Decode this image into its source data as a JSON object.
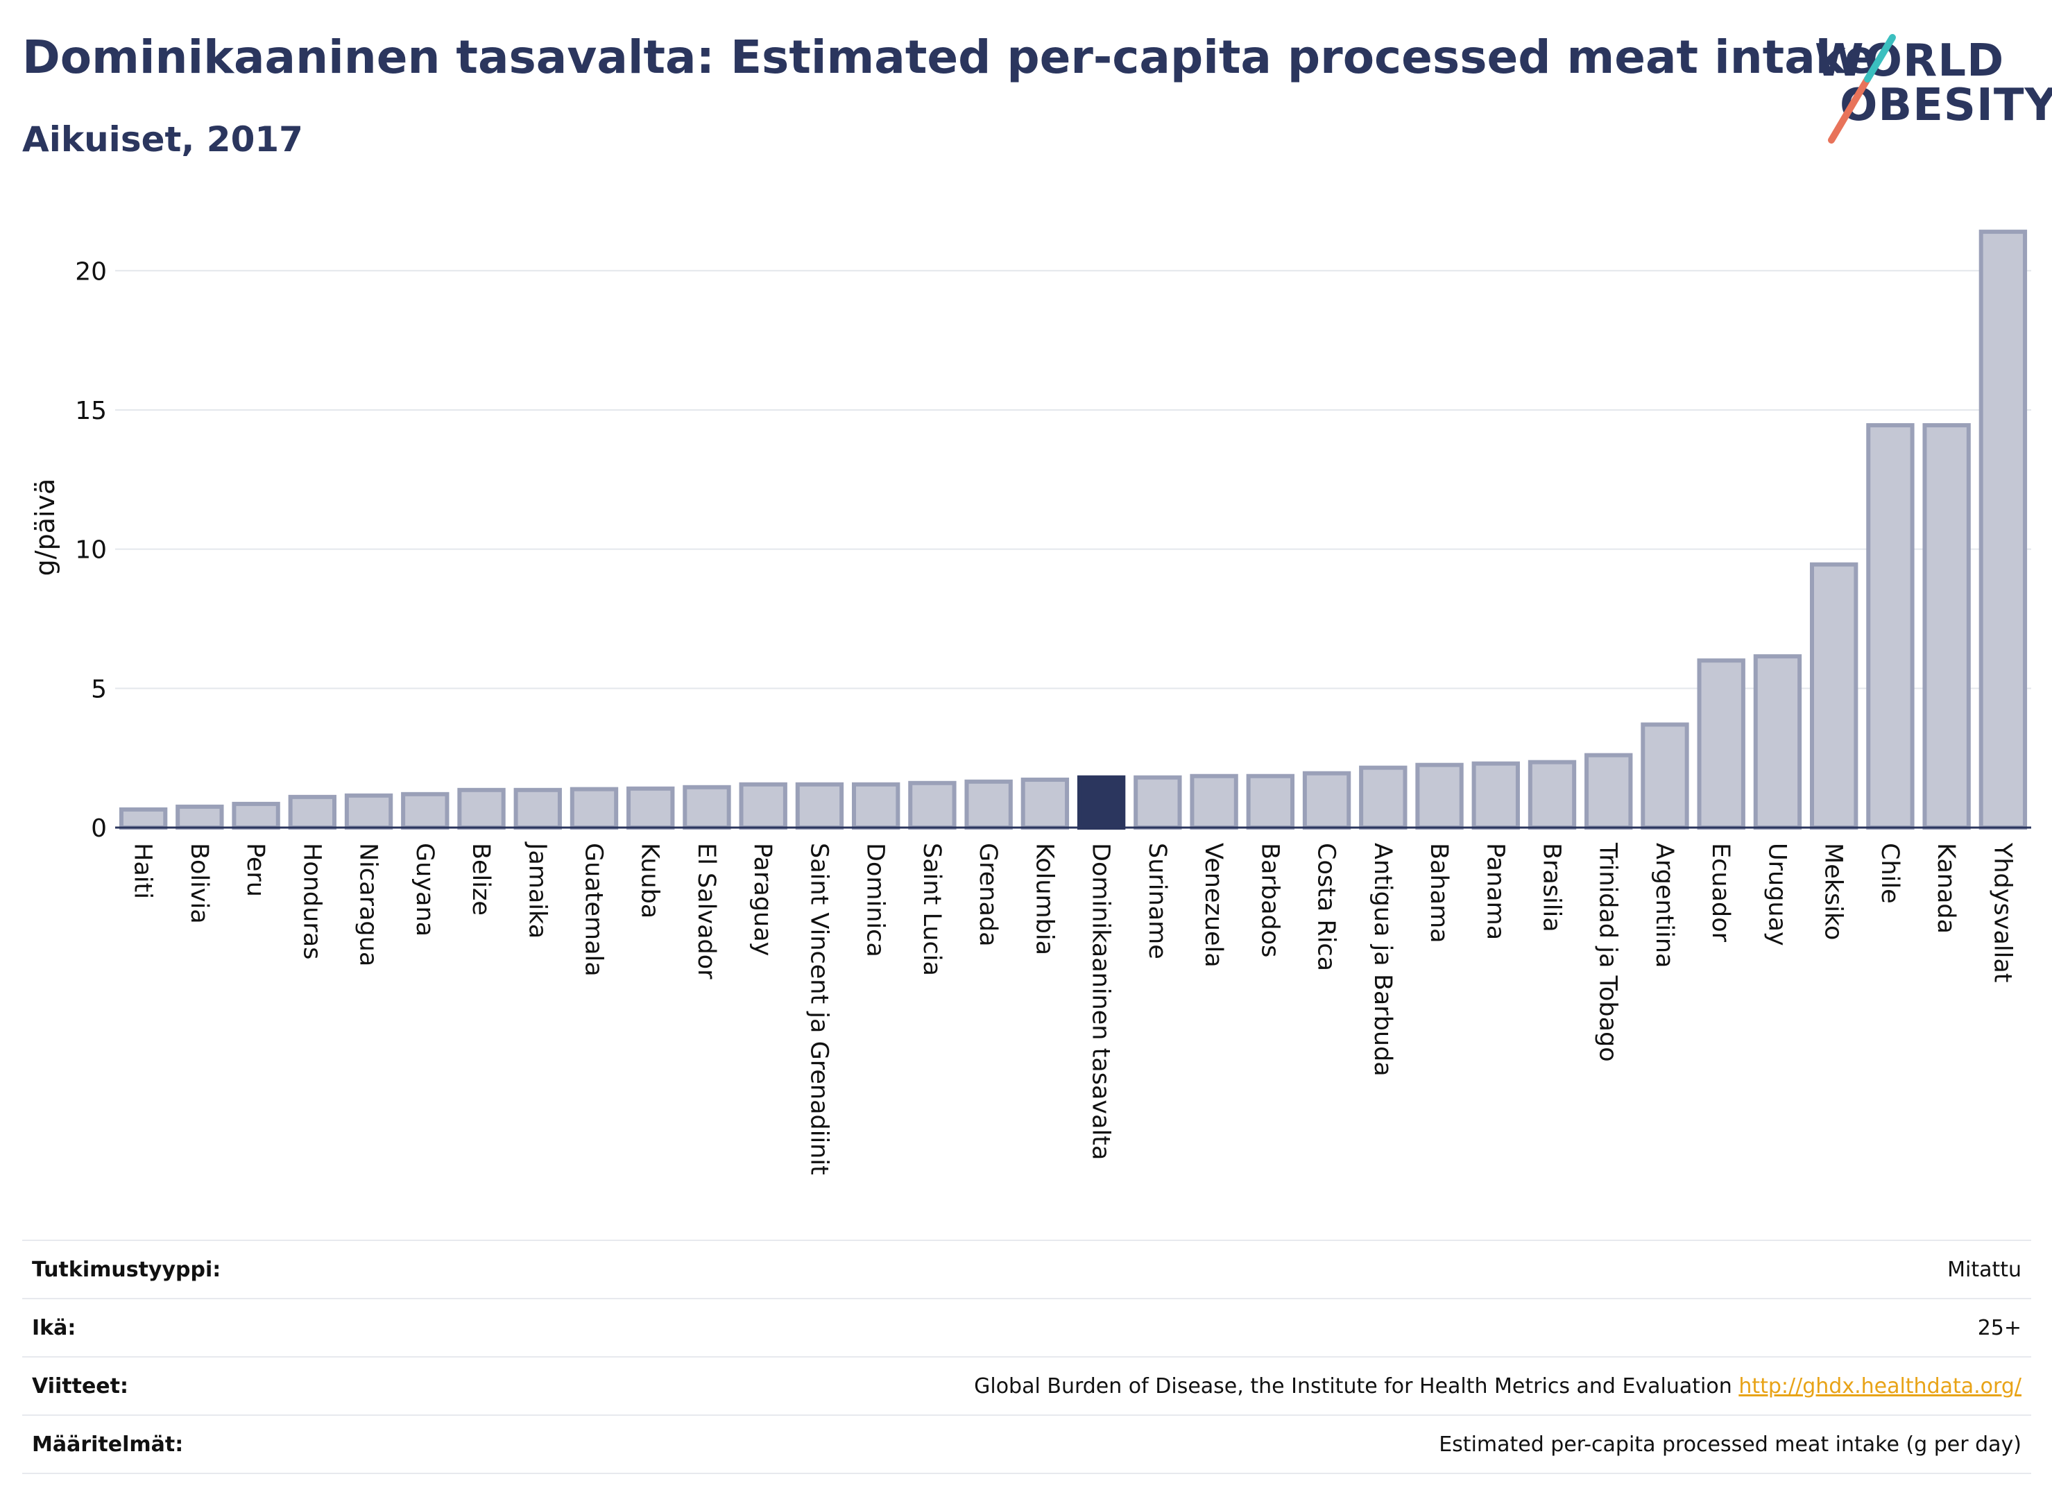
{
  "header": {
    "title": "Dominikaaninen tasavalta: Estimated per-capita processed meat intake",
    "subtitle": "Aikuiset, 2017"
  },
  "logo": {
    "line1": "WORLD",
    "line2": "OBESITY"
  },
  "colors": {
    "bar_fill": "#c4c7d4",
    "bar_stroke": "#9aa0b8",
    "highlight": "#2b365e",
    "grid": "#e4e7ec",
    "logo_teal": "#3bbfbf",
    "logo_coral": "#e8735a"
  },
  "chart_data": {
    "type": "bar",
    "title": "Dominikaaninen tasavalta: Estimated per-capita processed meat intake",
    "subtitle": "Aikuiset, 2017",
    "ylabel": "g/päivä",
    "xlabel": "",
    "ylim": [
      0,
      22
    ],
    "yticks": [
      0,
      5,
      10,
      15,
      20
    ],
    "grid": true,
    "highlight": "Dominikaaninen tasavalta",
    "categories": [
      "Haiti",
      "Bolivia",
      "Peru",
      "Honduras",
      "Nicaragua",
      "Guyana",
      "Belize",
      "Jamaika",
      "Guatemala",
      "Kuuba",
      "El Salvador",
      "Paraguay",
      "Saint Vincent ja Grenadiinit",
      "Dominica",
      "Saint Lucia",
      "Grenada",
      "Kolumbia",
      "Dominikaaninen tasavalta",
      "Suriname",
      "Venezuela",
      "Barbados",
      "Costa Rica",
      "Antigua ja Barbuda",
      "Bahama",
      "Panama",
      "Brasilia",
      "Trinidad ja Tobago",
      "Argentiina",
      "Ecuador",
      "Uruguay",
      "Meksiko",
      "Chile",
      "Kanada",
      "Yhdysvallat"
    ],
    "values": [
      0.65,
      0.75,
      0.85,
      1.1,
      1.15,
      1.2,
      1.35,
      1.35,
      1.38,
      1.4,
      1.45,
      1.55,
      1.55,
      1.55,
      1.6,
      1.65,
      1.72,
      1.8,
      1.8,
      1.85,
      1.85,
      1.95,
      2.15,
      2.25,
      2.3,
      2.35,
      2.6,
      3.7,
      6.0,
      6.15,
      9.45,
      14.45,
      14.45,
      21.4
    ]
  },
  "meta": [
    {
      "label": "Tutkimustyyppi:",
      "value": "Mitattu"
    },
    {
      "label": "Ikä:",
      "value": "25+"
    },
    {
      "label": "Viitteet:",
      "value": "Global Burden of Disease, the Institute for Health Metrics and Evaluation",
      "link": "http://ghdx.healthdata.org/"
    },
    {
      "label": "Määritelmät:",
      "value": "Estimated per-capita processed meat intake (g per day)"
    }
  ]
}
